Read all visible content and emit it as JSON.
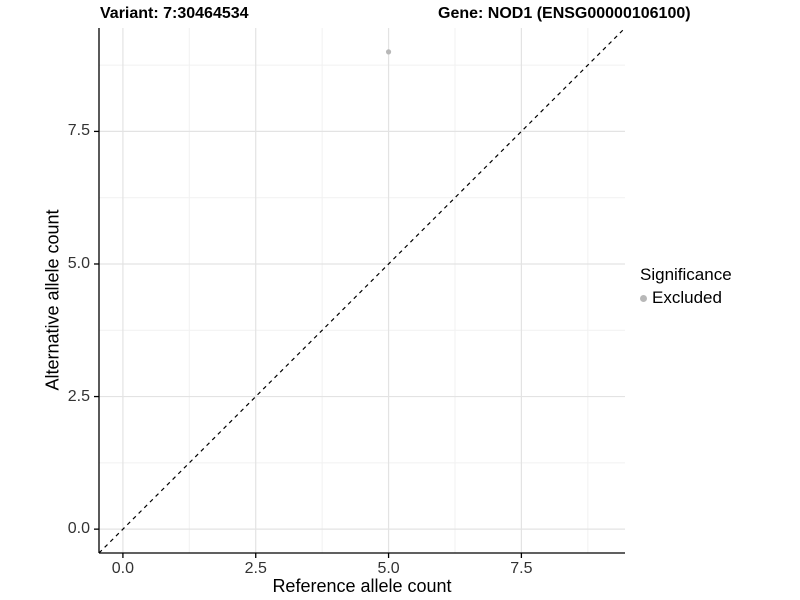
{
  "colors": {
    "background": "#ffffff",
    "grid_major": "#e3e3e3",
    "grid_minor": "#f1f1f1",
    "axis_line": "#000000",
    "tick_mark": "#000000",
    "tick_text": "#333333",
    "point_gray": "#b8b8b8",
    "reference_line": "#000000"
  },
  "chart_data": {
    "type": "scatter",
    "title_left": "Variant: 7:30464534",
    "title_right": "Gene: NOD1 (ENSG00000106100)",
    "xlabel": "Reference allele count",
    "ylabel": "Alternative allele count",
    "xlim": [
      -0.45,
      9.45
    ],
    "ylim": [
      -0.45,
      9.45
    ],
    "x_ticks": [
      0.0,
      2.5,
      5.0,
      7.5
    ],
    "y_ticks": [
      0.0,
      2.5,
      5.0,
      7.5
    ],
    "x_tick_labels": [
      "0.0",
      "2.5",
      "5.0",
      "7.5"
    ],
    "y_tick_labels": [
      "0.0",
      "2.5",
      "5.0",
      "7.5"
    ],
    "x_minor_ticks": [
      1.25,
      3.75,
      6.25,
      8.75
    ],
    "y_minor_ticks": [
      1.25,
      3.75,
      6.25,
      8.75
    ],
    "grid": true,
    "series": [
      {
        "name": "Excluded",
        "color": "#b8b8b8",
        "points": [
          {
            "x": 5,
            "y": 9
          }
        ]
      }
    ],
    "reference_line": {
      "type": "identity",
      "style": "dashed",
      "color": "#000000"
    },
    "legend": {
      "title": "Significance",
      "position": "right",
      "items": [
        {
          "label": "Excluded",
          "color": "#b8b8b8"
        }
      ]
    }
  }
}
